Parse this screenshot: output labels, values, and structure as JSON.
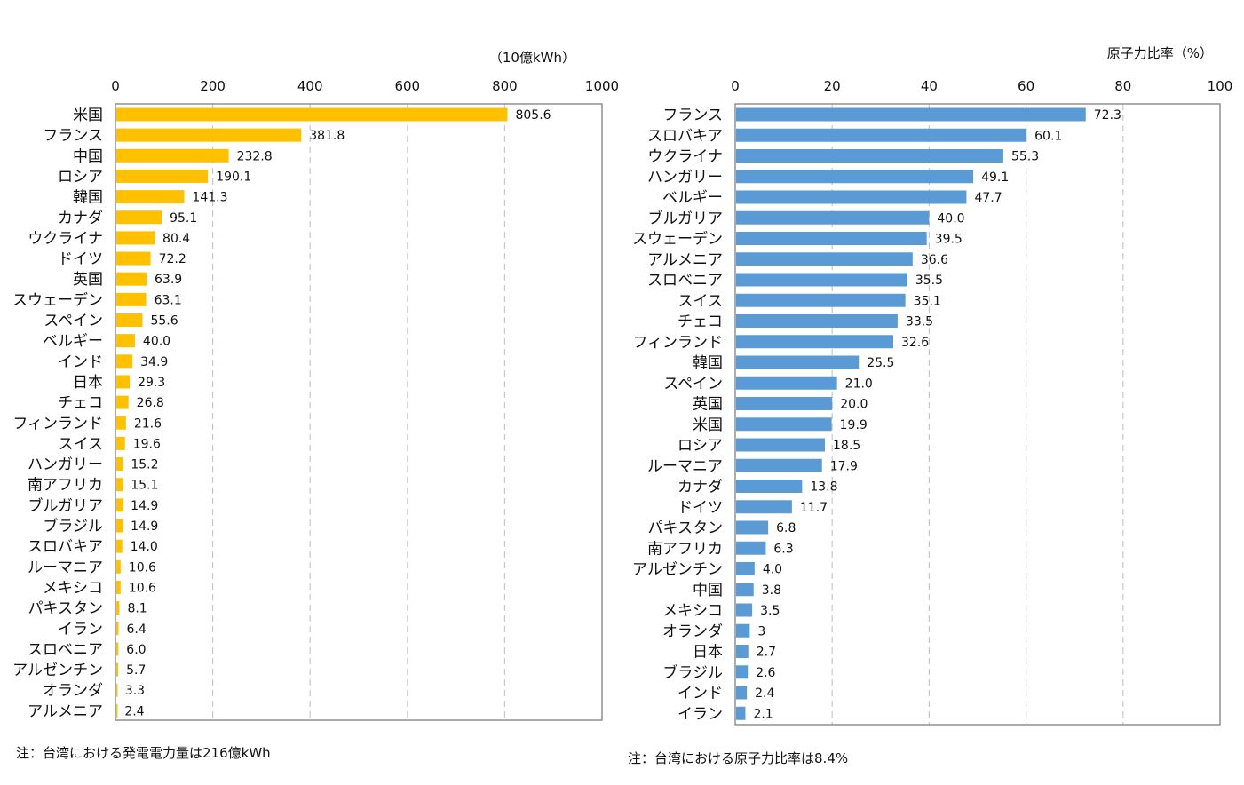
{
  "colors": {
    "left_bar": "#ffc000",
    "right_bar": "#5b9bd5",
    "grid": "#c8c8c8",
    "frame": "#808080"
  },
  "chart_data": [
    {
      "type": "bar",
      "orientation": "horizontal",
      "unit_label": "（10億kWh）",
      "xlim": [
        0,
        1000
      ],
      "ticks": [
        "0",
        "200",
        "400",
        "600",
        "800",
        "1000"
      ],
      "grid": true,
      "categories": [
        "米国",
        "フランス",
        "中国",
        "ロシア",
        "韓国",
        "カナダ",
        "ウクライナ",
        "ドイツ",
        "英国",
        "スウェーデン",
        "スペイン",
        "ベルギー",
        "インド",
        "日本",
        "チェコ",
        "フィンランド",
        "スイス",
        "ハンガリー",
        "南アフリカ",
        "ブルガリア",
        "ブラジル",
        "スロバキア",
        "ルーマニア",
        "メキシコ",
        "パキスタン",
        "イラン",
        "スロベニア",
        "アルゼンチン",
        "オランダ",
        "アルメニア"
      ],
      "values": [
        805.6,
        381.8,
        232.8,
        190.1,
        141.3,
        95.1,
        80.4,
        72.2,
        63.9,
        63.1,
        55.6,
        40.0,
        34.9,
        29.3,
        26.8,
        21.6,
        19.6,
        15.2,
        15.1,
        14.9,
        14.9,
        14.0,
        10.6,
        10.6,
        8.1,
        6.4,
        6.0,
        5.7,
        3.3,
        2.4
      ],
      "value_labels": [
        "805.6",
        "381.8",
        "232.8",
        "190.1",
        "141.3",
        "95.1",
        "80.4",
        "72.2",
        "63.9",
        "63.1",
        "55.6",
        "40.0",
        "34.9",
        "29.3",
        "26.8",
        "21.6",
        "19.6",
        "15.2",
        "15.1",
        "14.9",
        "14.9",
        "14.0",
        "10.6",
        "10.6",
        "8.1",
        "6.4",
        "6.0",
        "5.7",
        "3.3",
        "2.4"
      ],
      "note": "注：台湾における発電電力量は216億kWh"
    },
    {
      "type": "bar",
      "orientation": "horizontal",
      "unit_label": "原子力比率（%）",
      "xlim": [
        0,
        100
      ],
      "ticks": [
        "0",
        "20",
        "40",
        "60",
        "80",
        "100"
      ],
      "grid": true,
      "categories": [
        "フランス",
        "スロバキア",
        "ウクライナ",
        "ハンガリー",
        "ベルギー",
        "ブルガリア",
        "スウェーデン",
        "アルメニア",
        "スロベニア",
        "スイス",
        "チェコ",
        "フィンランド",
        "韓国",
        "スペイン",
        "英国",
        "米国",
        "ロシア",
        "ルーマニア",
        "カナダ",
        "ドイツ",
        "パキスタン",
        "南アフリカ",
        "アルゼンチン",
        "中国",
        "メキシコ",
        "オランダ",
        "日本",
        "ブラジル",
        "インド",
        "イラン"
      ],
      "values": [
        72.3,
        60.1,
        55.3,
        49.1,
        47.7,
        40.0,
        39.5,
        36.6,
        35.5,
        35.1,
        33.5,
        32.6,
        25.5,
        21.0,
        20.0,
        19.9,
        18.5,
        17.9,
        13.8,
        11.7,
        6.8,
        6.3,
        4.0,
        3.8,
        3.5,
        3,
        2.7,
        2.6,
        2.4,
        2.1
      ],
      "value_labels": [
        "72.3",
        "60.1",
        "55.3",
        "49.1",
        "47.7",
        "40.0",
        "39.5",
        "36.6",
        "35.5",
        "35.1",
        "33.5",
        "32.6",
        "25.5",
        "21.0",
        "20.0",
        "19.9",
        "18.5",
        "17.9",
        "13.8",
        "11.7",
        "6.8",
        "6.3",
        "4.0",
        "3.8",
        "3.5",
        "3",
        "2.7",
        "2.6",
        "2.4",
        "2.1"
      ],
      "note": "注：台湾における原子力比率は8.4%"
    }
  ]
}
